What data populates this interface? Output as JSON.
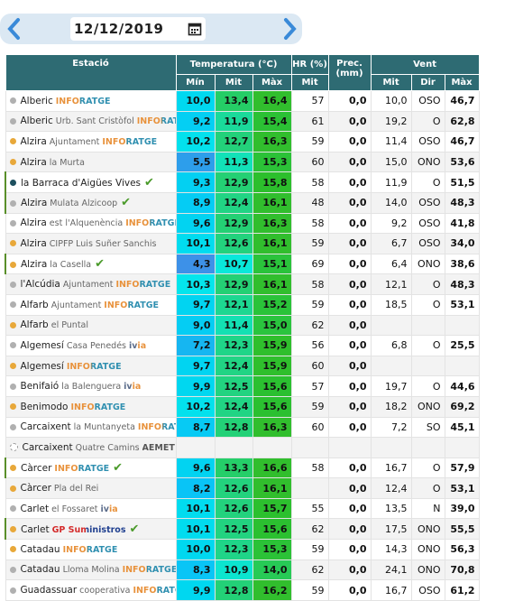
{
  "header": {
    "date": "12/12/2019"
  },
  "table": {
    "groups": [
      "Estació",
      "Temperatura (°C)",
      "HR (%)",
      "Prec. (mm)",
      "Vent"
    ],
    "subheaders": [
      "Mín",
      "Mit",
      "Màx",
      "Mit",
      "Mit",
      "Dir",
      "Màx"
    ],
    "rows": [
      {
        "dot": "#b0b0b0",
        "name": "Alberic",
        "tag": {
          "text": "INFORATGE",
          "colors": [
            "#e8913a",
            "#2f8fb0"
          ]
        },
        "check": false,
        "cells": [
          "10,0",
          "13,4",
          "16,4",
          "57",
          "0,0",
          "10,0",
          "OSO",
          "46,7"
        ]
      },
      {
        "dot": "#b0b0b0",
        "name": "Alberic",
        "place": "Urb. Sant Cristòfol",
        "tag": {
          "text": "INFORATGE",
          "colors": [
            "#e8913a",
            "#2f8fb0"
          ]
        },
        "check": false,
        "cells": [
          "9,2",
          "11,9",
          "15,4",
          "61",
          "0,0",
          "19,2",
          "O",
          "62,8"
        ]
      },
      {
        "dot": "#e8a83a",
        "name": "Alzira",
        "place": "Ajuntament",
        "tag": {
          "text": "INFORATGE",
          "colors": [
            "#e8913a",
            "#2f8fb0"
          ]
        },
        "check": false,
        "cells": [
          "10,2",
          "12,7",
          "16,3",
          "59",
          "0,0",
          "11,4",
          "OSO",
          "46,7"
        ]
      },
      {
        "dot": "#e8a83a",
        "name": "Alzira",
        "place": "la Murta",
        "check": false,
        "cells": [
          "5,5",
          "11,3",
          "15,3",
          "60",
          "0,0",
          "15,0",
          "ONO",
          "53,6"
        ]
      },
      {
        "dot": "#1d4f5e",
        "name": "la Barraca d'Aigües Vives",
        "check": true,
        "cells": [
          "9,3",
          "12,9",
          "15,8",
          "58",
          "0,0",
          "11,9",
          "O",
          "51,5"
        ]
      },
      {
        "dot": "#b0b0b0",
        "name": "Alzira",
        "place": "Mulata Alzicoop",
        "check": true,
        "cells": [
          "8,9",
          "12,4",
          "16,1",
          "48",
          "0,0",
          "14,0",
          "OSO",
          "48,3"
        ]
      },
      {
        "dot": "#b0b0b0",
        "name": "Alzira",
        "place": "est l'Alquenència",
        "tag": {
          "text": "INFORATGE",
          "colors": [
            "#e8913a",
            "#2f8fb0"
          ]
        },
        "check": false,
        "cells": [
          "9,6",
          "12,9",
          "16,3",
          "58",
          "0,0",
          "9,2",
          "OSO",
          "41,8"
        ]
      },
      {
        "dot": "#e8a83a",
        "name": "Alzira",
        "place": "CIPFP Luis Suñer Sanchis",
        "check": false,
        "cells": [
          "10,1",
          "12,6",
          "16,1",
          "59",
          "0,0",
          "6,7",
          "OSO",
          "34,0"
        ]
      },
      {
        "dot": "#e8a83a",
        "name": "Alzira",
        "place": "la Casella",
        "check": true,
        "cells": [
          "4,3",
          "10,7",
          "15,1",
          "69",
          "0,0",
          "6,4",
          "ONO",
          "38,6"
        ]
      },
      {
        "dot": "#b0b0b0",
        "name": "l'Alcúdia",
        "place": "Ajuntament",
        "tag": {
          "text": "INFORATGE",
          "colors": [
            "#e8913a",
            "#2f8fb0"
          ]
        },
        "check": false,
        "cells": [
          "10,3",
          "12,9",
          "16,1",
          "58",
          "0,0",
          "12,1",
          "O",
          "48,3"
        ]
      },
      {
        "dot": "#b0b0b0",
        "name": "Alfarb",
        "place": "Ajuntament",
        "tag": {
          "text": "INFORATGE",
          "colors": [
            "#e8913a",
            "#2f8fb0"
          ]
        },
        "check": false,
        "cells": [
          "9,7",
          "12,1",
          "15,2",
          "59",
          "0,0",
          "18,5",
          "O",
          "53,1"
        ]
      },
      {
        "dot": "#e8a83a",
        "name": "Alfarb",
        "place": "el Puntal",
        "check": false,
        "cells": [
          "9,0",
          "11,4",
          "15,0",
          "62",
          "0,0",
          null,
          null,
          null
        ]
      },
      {
        "dot": "#b0b0b0",
        "name": "Algemesí",
        "place": "Casa Penedés",
        "tag": {
          "text": "ivia",
          "colors": [
            "#5a6b8a",
            "#e8913a"
          ]
        },
        "check": false,
        "cells": [
          "7,2",
          "12,3",
          "15,9",
          "56",
          "0,0",
          "6,8",
          "O",
          "25,5"
        ]
      },
      {
        "dot": "#e8a83a",
        "name": "Algemesí",
        "tag": {
          "text": "INFORATGE",
          "colors": [
            "#e8913a",
            "#2f8fb0"
          ]
        },
        "check": false,
        "cells": [
          "9,7",
          "12,4",
          "15,9",
          "60",
          "0,0",
          null,
          null,
          null
        ]
      },
      {
        "dot": "#b0b0b0",
        "name": "Benifaió",
        "place": "la Balenguera",
        "tag": {
          "text": "ivia",
          "colors": [
            "#5a6b8a",
            "#e8913a"
          ]
        },
        "check": false,
        "cells": [
          "9,9",
          "12,5",
          "15,6",
          "57",
          "0,0",
          "19,7",
          "O",
          "44,6"
        ]
      },
      {
        "dot": "#e8a83a",
        "name": "Benimodo",
        "tag": {
          "text": "INFORATGE",
          "colors": [
            "#e8913a",
            "#2f8fb0"
          ]
        },
        "check": false,
        "cells": [
          "10,2",
          "12,4",
          "15,6",
          "59",
          "0,0",
          "18,2",
          "ONO",
          "69,2"
        ]
      },
      {
        "dot": "#b0b0b0",
        "name": "Carcaixent",
        "place": "la Muntanyeta",
        "tag": {
          "text": "INFORATGE",
          "colors": [
            "#e8913a",
            "#2f8fb0"
          ]
        },
        "check": false,
        "cells": [
          "8,7",
          "12,8",
          "16,3",
          "60",
          "0,0",
          "7,2",
          "SO",
          "45,1"
        ]
      },
      {
        "dot": "#ffffff",
        "name": "Carcaixent",
        "place": "Quatre Camins",
        "tag": {
          "text": "AEMET",
          "colors": [
            "#555555",
            "#555555"
          ]
        },
        "check": false,
        "cells": [
          null,
          null,
          null,
          null,
          null,
          null,
          null,
          null
        ]
      },
      {
        "dot": "#e8a83a",
        "name": "Càrcer",
        "tag": {
          "text": "INFORATGE",
          "colors": [
            "#e8913a",
            "#2f8fb0"
          ]
        },
        "check": true,
        "cells": [
          "9,6",
          "13,3",
          "16,6",
          "58",
          "0,0",
          "16,7",
          "O",
          "57,9"
        ]
      },
      {
        "dot": "#e8a83a",
        "name": "Càrcer",
        "place": "Pla del Rei",
        "check": false,
        "cells": [
          "8,2",
          "12,6",
          "16,1",
          null,
          "0,0",
          "12,4",
          "O",
          "53,1"
        ]
      },
      {
        "dot": "#b0b0b0",
        "name": "Carlet",
        "place": "el Fossaret",
        "tag": {
          "text": "ivia",
          "colors": [
            "#5a6b8a",
            "#e8913a"
          ]
        },
        "check": false,
        "cells": [
          "10,1",
          "12,6",
          "15,7",
          "55",
          "0,0",
          "13,5",
          "N",
          "39,0"
        ]
      },
      {
        "dot": "#e8a83a",
        "name": "Carlet",
        "tag": {
          "text": "GP Suministros",
          "colors": [
            "#d42a2a",
            "#1f3f8f"
          ]
        },
        "check": true,
        "cells": [
          "10,1",
          "12,5",
          "15,6",
          "62",
          "0,0",
          "17,5",
          "ONO",
          "55,5"
        ]
      },
      {
        "dot": "#e8a83a",
        "name": "Catadau",
        "tag": {
          "text": "INFORATGE",
          "colors": [
            "#e8913a",
            "#2f8fb0"
          ]
        },
        "check": false,
        "cells": [
          "10,0",
          "12,3",
          "15,3",
          "59",
          "0,0",
          "14,3",
          "ONO",
          "56,3"
        ]
      },
      {
        "dot": "#b0b0b0",
        "name": "Catadau",
        "place": "Lloma Molina",
        "tag": {
          "text": "INFORATGE",
          "colors": [
            "#e8913a",
            "#2f8fb0"
          ]
        },
        "check": false,
        "cells": [
          "8,3",
          "10,9",
          "14,0",
          "62",
          "0,0",
          "24,1",
          "ONO",
          "70,8"
        ]
      },
      {
        "dot": "#b0b0b0",
        "name": "Guadassuar",
        "place": "cooperativa",
        "tag": {
          "text": "INFORATGE",
          "colors": [
            "#e8913a",
            "#2f8fb0"
          ]
        },
        "check": false,
        "cells": [
          "9,9",
          "12,8",
          "16,2",
          "59",
          "0,0",
          "16,7",
          "OSO",
          "61,2"
        ]
      }
    ]
  }
}
